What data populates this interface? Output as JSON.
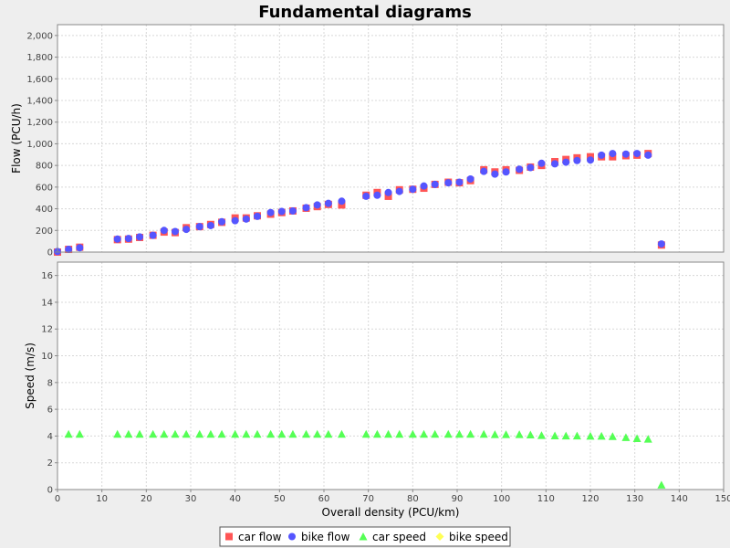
{
  "chart_data": {
    "type": "scatter",
    "title": "Fundamental diagrams",
    "xlabel": "Overall density (PCU/km)",
    "xlim": [
      0,
      150
    ],
    "x_ticks": [
      0,
      10,
      20,
      30,
      40,
      50,
      60,
      70,
      80,
      90,
      100,
      110,
      120,
      130,
      140,
      150
    ],
    "grid": true,
    "legend_position": "bottom-center",
    "panels": [
      {
        "name": "flow",
        "ylabel": "Flow (PCU/h)",
        "ylim": [
          0,
          2100
        ],
        "y_ticks": [
          0,
          200,
          400,
          600,
          800,
          1000,
          1200,
          1400,
          1600,
          1800,
          2000
        ],
        "y_tick_labels": [
          "0",
          "200",
          "400",
          "600",
          "800",
          "1,000",
          "1,200",
          "1,400",
          "1,600",
          "1,800",
          "2,000"
        ],
        "series": [
          {
            "name": "car flow",
            "marker": "square",
            "color": "#ff5555",
            "points": [
              [
                0,
                0
              ],
              [
                2.5,
                25
              ],
              [
                5,
                45
              ],
              [
                13.5,
                115
              ],
              [
                16,
                120
              ],
              [
                18.5,
                135
              ],
              [
                21.5,
                155
              ],
              [
                24,
                185
              ],
              [
                26.5,
                180
              ],
              [
                29,
                225
              ],
              [
                32,
                235
              ],
              [
                34.5,
                255
              ],
              [
                37,
                275
              ],
              [
                40,
                315
              ],
              [
                42.5,
                315
              ],
              [
                45,
                335
              ],
              [
                48,
                350
              ],
              [
                50.5,
                365
              ],
              [
                53,
                380
              ],
              [
                56,
                405
              ],
              [
                58.5,
                420
              ],
              [
                61,
                440
              ],
              [
                64,
                435
              ],
              [
                69.5,
                525
              ],
              [
                72,
                550
              ],
              [
                74.5,
                515
              ],
              [
                77,
                575
              ],
              [
                80,
                580
              ],
              [
                82.5,
                590
              ],
              [
                85,
                625
              ],
              [
                88,
                645
              ],
              [
                90.5,
                640
              ],
              [
                93,
                660
              ],
              [
                96,
                760
              ],
              [
                98.5,
                740
              ],
              [
                101,
                760
              ],
              [
                104,
                755
              ],
              [
                106.5,
                785
              ],
              [
                109,
                800
              ],
              [
                112,
                835
              ],
              [
                114.5,
                855
              ],
              [
                117,
                870
              ],
              [
                120,
                880
              ],
              [
                122.5,
                880
              ],
              [
                125,
                880
              ],
              [
                128,
                890
              ],
              [
                130.5,
                895
              ],
              [
                133,
                910
              ],
              [
                136,
                65
              ]
            ]
          },
          {
            "name": "bike flow",
            "marker": "circle",
            "color": "#5555ff",
            "points": [
              [
                0,
                5
              ],
              [
                2.5,
                25
              ],
              [
                5,
                40
              ],
              [
                13.5,
                120
              ],
              [
                16,
                125
              ],
              [
                18.5,
                140
              ],
              [
                21.5,
                155
              ],
              [
                24,
                200
              ],
              [
                26.5,
                190
              ],
              [
                29,
                210
              ],
              [
                32,
                235
              ],
              [
                34.5,
                245
              ],
              [
                37,
                280
              ],
              [
                40,
                290
              ],
              [
                42.5,
                305
              ],
              [
                45,
                330
              ],
              [
                48,
                365
              ],
              [
                50.5,
                375
              ],
              [
                53,
                380
              ],
              [
                56,
                410
              ],
              [
                58.5,
                435
              ],
              [
                61,
                450
              ],
              [
                64,
                470
              ],
              [
                69.5,
                515
              ],
              [
                72,
                525
              ],
              [
                74.5,
                550
              ],
              [
                77,
                560
              ],
              [
                80,
                580
              ],
              [
                82.5,
                610
              ],
              [
                85,
                625
              ],
              [
                88,
                640
              ],
              [
                90.5,
                645
              ],
              [
                93,
                675
              ],
              [
                96,
                745
              ],
              [
                98.5,
                720
              ],
              [
                101,
                740
              ],
              [
                104,
                765
              ],
              [
                106.5,
                780
              ],
              [
                109,
                820
              ],
              [
                112,
                815
              ],
              [
                114.5,
                830
              ],
              [
                117,
                845
              ],
              [
                120,
                850
              ],
              [
                122.5,
                895
              ],
              [
                125,
                910
              ],
              [
                128,
                905
              ],
              [
                130.5,
                910
              ],
              [
                133,
                895
              ],
              [
                136,
                75
              ]
            ]
          }
        ]
      },
      {
        "name": "speed",
        "ylabel": "Speed (m/s)",
        "ylim": [
          0,
          17
        ],
        "y_ticks": [
          0,
          2,
          4,
          6,
          8,
          10,
          12,
          14,
          16
        ],
        "y_tick_labels": [
          "0",
          "2",
          "4",
          "6",
          "8",
          "10",
          "12",
          "14",
          "16"
        ],
        "series": [
          {
            "name": "car speed",
            "marker": "triangle",
            "color": "#55ff55",
            "points": [
              [
                2.5,
                4.15
              ],
              [
                5,
                4.15
              ],
              [
                13.5,
                4.15
              ],
              [
                16,
                4.15
              ],
              [
                18.5,
                4.15
              ],
              [
                21.5,
                4.15
              ],
              [
                24,
                4.15
              ],
              [
                26.5,
                4.15
              ],
              [
                29,
                4.15
              ],
              [
                32,
                4.15
              ],
              [
                34.5,
                4.15
              ],
              [
                37,
                4.15
              ],
              [
                40,
                4.15
              ],
              [
                42.5,
                4.15
              ],
              [
                45,
                4.15
              ],
              [
                48,
                4.15
              ],
              [
                50.5,
                4.15
              ],
              [
                53,
                4.15
              ],
              [
                56,
                4.15
              ],
              [
                58.5,
                4.15
              ],
              [
                61,
                4.15
              ],
              [
                64,
                4.15
              ],
              [
                69.5,
                4.15
              ],
              [
                72,
                4.15
              ],
              [
                74.5,
                4.15
              ],
              [
                77,
                4.15
              ],
              [
                80,
                4.15
              ],
              [
                82.5,
                4.15
              ],
              [
                85,
                4.15
              ],
              [
                88,
                4.15
              ],
              [
                90.5,
                4.15
              ],
              [
                93,
                4.15
              ],
              [
                96,
                4.15
              ],
              [
                98.5,
                4.12
              ],
              [
                101,
                4.12
              ],
              [
                104,
                4.12
              ],
              [
                106.5,
                4.1
              ],
              [
                109,
                4.05
              ],
              [
                112,
                4.03
              ],
              [
                114.5,
                4.02
              ],
              [
                117,
                4.02
              ],
              [
                120,
                4.0
              ],
              [
                122.5,
                4.0
              ],
              [
                125,
                3.98
              ],
              [
                128,
                3.9
              ],
              [
                130.5,
                3.82
              ],
              [
                133,
                3.78
              ],
              [
                136,
                0.35
              ]
            ]
          },
          {
            "name": "bike speed",
            "marker": "diamond",
            "color": "#ffff55",
            "points": []
          }
        ]
      }
    ]
  },
  "legend": {
    "items": [
      {
        "label": "car flow",
        "marker": "square",
        "color": "#ff5555"
      },
      {
        "label": "bike flow",
        "marker": "circle",
        "color": "#5555ff"
      },
      {
        "label": "car speed",
        "marker": "triangle",
        "color": "#55ff55"
      },
      {
        "label": "bike speed",
        "marker": "diamond",
        "color": "#ffff55"
      }
    ]
  }
}
